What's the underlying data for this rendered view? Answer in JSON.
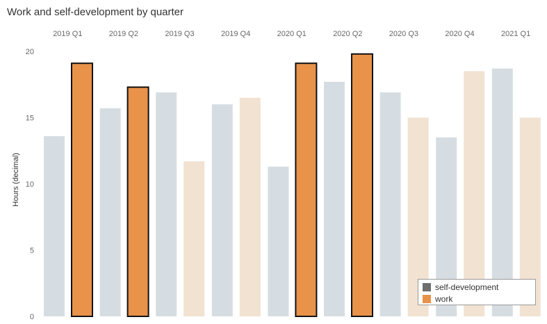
{
  "chart_data": {
    "type": "bar",
    "title": "Work and self-development by quarter",
    "xlabel": "",
    "ylabel": "Hours (decimal)",
    "ylim": [
      0,
      20
    ],
    "yticks": [
      0,
      5,
      10,
      15,
      20
    ],
    "categories": [
      "2019 Q1",
      "2019 Q2",
      "2019 Q3",
      "2019 Q4",
      "2020 Q1",
      "2020 Q2",
      "2020 Q3",
      "2020 Q4",
      "2021 Q1"
    ],
    "series": [
      {
        "name": "self-development",
        "color": "#6e6e6e",
        "values": [
          13.6,
          15.7,
          16.9,
          16.0,
          11.3,
          17.7,
          16.9,
          13.5,
          18.7
        ]
      },
      {
        "name": "work",
        "color": "#e8924a",
        "values": [
          19.1,
          17.3,
          11.7,
          16.5,
          19.1,
          19.8,
          15.0,
          18.5,
          15.0
        ]
      }
    ],
    "highlighted": [
      {
        "series": "work",
        "category": "2019 Q1"
      },
      {
        "series": "work",
        "category": "2019 Q2"
      },
      {
        "series": "work",
        "category": "2020 Q1"
      },
      {
        "series": "work",
        "category": "2020 Q2"
      }
    ],
    "colors": {
      "self_development_faded": "#d6dde2",
      "work_highlight": "#e8924a",
      "work_faded": "#f2e2d1",
      "highlight_outline": "#111111"
    },
    "grid": false,
    "legend": "bottom-right"
  }
}
